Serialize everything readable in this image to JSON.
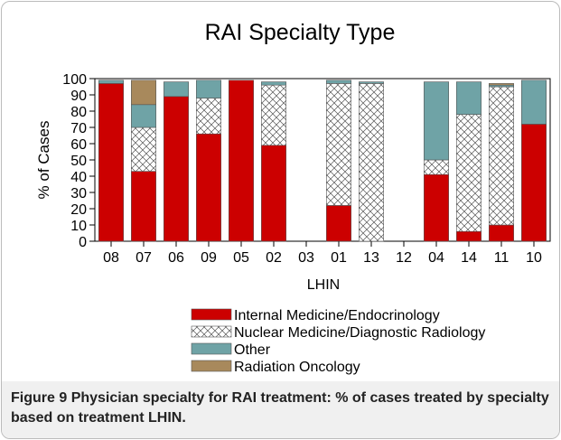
{
  "chart_data": {
    "type": "stacked_bar",
    "title": "RAI Specialty Type",
    "x_label": "LHIN",
    "y_label": "% of Cases",
    "categories": [
      "08",
      "07",
      "06",
      "09",
      "05",
      "02",
      "03",
      "01",
      "13",
      "12",
      "04",
      "14",
      "11",
      "10"
    ],
    "series": [
      {
        "name": "Internal Medicine/Endocrinology",
        "color": "#cc0000",
        "values": [
          97,
          43,
          89,
          66,
          99,
          59,
          0,
          22,
          0,
          0,
          41,
          6,
          10,
          72
        ]
      },
      {
        "name": "Nuclear Medicine/Diagnostic Radiology",
        "color": "#ffffff",
        "pattern": "crosshatch",
        "values": [
          0,
          27,
          0,
          22,
          0,
          37,
          0,
          75,
          97,
          0,
          9,
          72,
          85,
          0
        ]
      },
      {
        "name": "Other",
        "color": "#6fa3a6",
        "values": [
          2,
          14,
          9,
          11,
          0,
          2,
          0,
          2,
          1,
          0,
          48,
          20,
          1,
          27
        ]
      },
      {
        "name": "Radiation Oncology",
        "color": "#a8895c",
        "values": [
          0,
          15,
          0,
          0,
          0,
          0,
          0,
          0,
          0,
          0,
          0,
          0,
          1,
          0
        ]
      }
    ],
    "ylim": [
      0,
      100
    ],
    "yticks": [
      0,
      10,
      20,
      30,
      40,
      50,
      60,
      70,
      80,
      90,
      100
    ]
  },
  "caption": {
    "label": "Figure 9",
    "text": "Physician specialty for RAI treatment: % of cases treated by specialty based on treatment LHIN."
  }
}
